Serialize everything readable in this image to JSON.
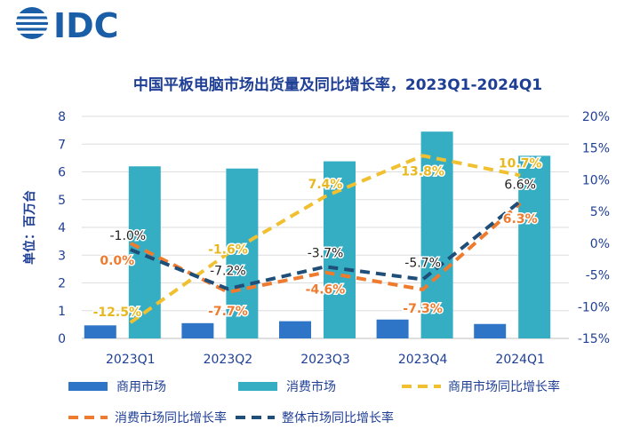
{
  "logo": {
    "text": "IDC"
  },
  "chart_data": {
    "type": "bar",
    "title": "中国平板电脑市场出货量及同比增长率，2023Q1-2024Q1",
    "ylabel": "单位：百万台",
    "categories": [
      "2023Q1",
      "2023Q2",
      "2023Q3",
      "2023Q4",
      "2024Q1"
    ],
    "ylim": [
      0,
      8
    ],
    "y_ticks": [
      "0",
      "1",
      "2",
      "3",
      "4",
      "5",
      "6",
      "7",
      "8"
    ],
    "y2lim": [
      -15,
      20
    ],
    "y2_ticks": [
      "-15%",
      "-10%",
      "-5%",
      "0%",
      "5%",
      "10%",
      "15%",
      "20%"
    ],
    "grid": true,
    "legend_position": "bottom",
    "bar_series": [
      {
        "name": "商用市场",
        "color": "#2e75c8",
        "values": [
          0.47,
          0.55,
          0.62,
          0.68,
          0.52
        ]
      },
      {
        "name": "消费市场",
        "color": "#35aec4",
        "values": [
          6.2,
          6.12,
          6.38,
          7.45,
          6.58
        ]
      }
    ],
    "line_series": [
      {
        "name": "商用市场同比增长率",
        "color": "#f0c030",
        "values": [
          -12.5,
          -1.6,
          7.4,
          13.8,
          10.7
        ],
        "labels": [
          "-12.5%",
          "-1.6%",
          "7.4%",
          "13.8%",
          "10.7%"
        ]
      },
      {
        "name": "消费市场同比增长率",
        "color": "#ef7b2e",
        "values": [
          0.0,
          -7.7,
          -4.6,
          -7.3,
          6.3
        ],
        "labels": [
          "0.0%",
          "-7.7%",
          "-4.6%",
          "-7.3%",
          "6.3%"
        ]
      },
      {
        "name": "整体市场同比增长率",
        "color": "#1f4e79",
        "values": [
          -1.0,
          -7.2,
          -3.7,
          -5.7,
          6.6
        ],
        "labels": [
          "-1.0%",
          "-7.2%",
          "-3.7%",
          "-5.7%",
          "6.6%"
        ]
      }
    ]
  }
}
